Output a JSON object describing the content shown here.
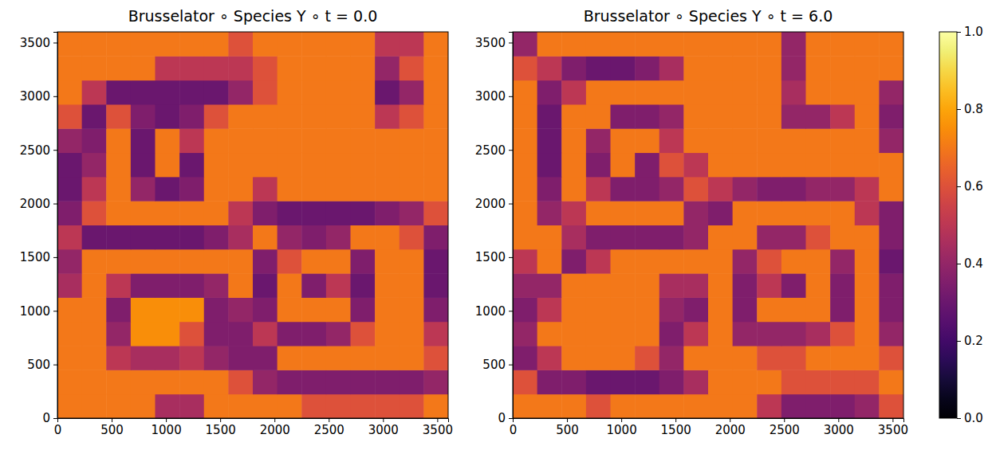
{
  "chart_data": [
    {
      "type": "heatmap",
      "title": "Brusselator ∘ Species Y ∘ t = 0.0",
      "xlim": [
        0,
        3600
      ],
      "ylim": [
        0,
        3600
      ],
      "xticks": [
        0,
        500,
        1000,
        1500,
        2000,
        2500,
        3000,
        3500
      ],
      "yticks": [
        0,
        500,
        1000,
        1500,
        2000,
        2500,
        3000,
        3500
      ],
      "x": [
        112.5,
        337.5,
        562.5,
        787.5,
        1012.5,
        1237.5,
        1462.5,
        1687.5,
        1912.5,
        2137.5,
        2362.5,
        2587.5,
        2812.5,
        3037.5,
        3262.5,
        3487.5
      ],
      "y": [
        112.5,
        337.5,
        562.5,
        787.5,
        1012.5,
        1237.5,
        1462.5,
        1687.5,
        1912.5,
        2137.5,
        2362.5,
        2587.5,
        2812.5,
        3037.5,
        3262.5,
        3487.5
      ],
      "z": [
        [
          0.7,
          0.7,
          0.7,
          0.7,
          0.45,
          0.45,
          0.7,
          0.7,
          0.7,
          0.7,
          0.6,
          0.6,
          0.6,
          0.6,
          0.6,
          0.7
        ],
        [
          0.7,
          0.7,
          0.7,
          0.7,
          0.7,
          0.7,
          0.7,
          0.6,
          0.4,
          0.35,
          0.35,
          0.35,
          0.35,
          0.35,
          0.35,
          0.4
        ],
        [
          0.7,
          0.7,
          0.5,
          0.45,
          0.45,
          0.5,
          0.4,
          0.35,
          0.35,
          0.7,
          0.7,
          0.7,
          0.7,
          0.7,
          0.7,
          0.6
        ],
        [
          0.7,
          0.7,
          0.4,
          0.75,
          0.75,
          0.6,
          0.35,
          0.35,
          0.5,
          0.35,
          0.35,
          0.4,
          0.6,
          0.7,
          0.7,
          0.5
        ],
        [
          0.7,
          0.7,
          0.35,
          0.75,
          0.75,
          0.75,
          0.35,
          0.4,
          0.35,
          0.7,
          0.7,
          0.7,
          0.35,
          0.7,
          0.7,
          0.35
        ],
        [
          0.45,
          0.7,
          0.5,
          0.35,
          0.35,
          0.35,
          0.4,
          0.7,
          0.3,
          0.7,
          0.35,
          0.5,
          0.3,
          0.7,
          0.7,
          0.3
        ],
        [
          0.4,
          0.7,
          0.7,
          0.7,
          0.7,
          0.7,
          0.7,
          0.7,
          0.35,
          0.6,
          0.7,
          0.7,
          0.35,
          0.7,
          0.7,
          0.3
        ],
        [
          0.5,
          0.3,
          0.3,
          0.3,
          0.3,
          0.3,
          0.35,
          0.45,
          0.7,
          0.4,
          0.35,
          0.4,
          0.7,
          0.7,
          0.6,
          0.35
        ],
        [
          0.35,
          0.6,
          0.7,
          0.7,
          0.7,
          0.7,
          0.7,
          0.5,
          0.35,
          0.3,
          0.3,
          0.3,
          0.3,
          0.35,
          0.4,
          0.6
        ],
        [
          0.3,
          0.5,
          0.7,
          0.4,
          0.3,
          0.35,
          0.7,
          0.7,
          0.5,
          0.7,
          0.7,
          0.7,
          0.7,
          0.7,
          0.7,
          0.7
        ],
        [
          0.3,
          0.4,
          0.7,
          0.3,
          0.7,
          0.3,
          0.7,
          0.7,
          0.7,
          0.7,
          0.7,
          0.7,
          0.7,
          0.7,
          0.7,
          0.7
        ],
        [
          0.4,
          0.35,
          0.7,
          0.3,
          0.7,
          0.5,
          0.7,
          0.7,
          0.7,
          0.7,
          0.7,
          0.7,
          0.7,
          0.7,
          0.7,
          0.7
        ],
        [
          0.6,
          0.3,
          0.6,
          0.35,
          0.3,
          0.35,
          0.6,
          0.7,
          0.7,
          0.7,
          0.7,
          0.7,
          0.7,
          0.5,
          0.6,
          0.7
        ],
        [
          0.7,
          0.5,
          0.3,
          0.3,
          0.3,
          0.3,
          0.3,
          0.4,
          0.6,
          0.7,
          0.7,
          0.7,
          0.7,
          0.3,
          0.4,
          0.7
        ],
        [
          0.7,
          0.7,
          0.7,
          0.7,
          0.5,
          0.5,
          0.5,
          0.5,
          0.6,
          0.7,
          0.7,
          0.7,
          0.7,
          0.4,
          0.6,
          0.7
        ],
        [
          0.7,
          0.7,
          0.7,
          0.7,
          0.7,
          0.7,
          0.7,
          0.6,
          0.7,
          0.7,
          0.7,
          0.7,
          0.7,
          0.5,
          0.5,
          0.7
        ]
      ]
    },
    {
      "type": "heatmap",
      "title": "Brusselator ∘ Species Y ∘ t = 6.0",
      "xlim": [
        0,
        3600
      ],
      "ylim": [
        0,
        3600
      ],
      "xticks": [
        0,
        500,
        1000,
        1500,
        2000,
        2500,
        3000,
        3500
      ],
      "yticks": [
        0,
        500,
        1000,
        1500,
        2000,
        2500,
        3000,
        3500
      ],
      "x": [
        112.5,
        337.5,
        562.5,
        787.5,
        1012.5,
        1237.5,
        1462.5,
        1687.5,
        1912.5,
        2137.5,
        2362.5,
        2587.5,
        2812.5,
        3037.5,
        3262.5,
        3487.5
      ],
      "y": [
        112.5,
        337.5,
        562.5,
        787.5,
        1012.5,
        1237.5,
        1462.5,
        1687.5,
        1912.5,
        2137.5,
        2362.5,
        2587.5,
        2812.5,
        3037.5,
        3262.5,
        3487.5
      ],
      "z": [
        [
          0.7,
          0.7,
          0.7,
          0.6,
          0.7,
          0.7,
          0.7,
          0.7,
          0.7,
          0.7,
          0.5,
          0.35,
          0.35,
          0.35,
          0.4,
          0.6
        ],
        [
          0.6,
          0.35,
          0.35,
          0.3,
          0.3,
          0.3,
          0.35,
          0.45,
          0.7,
          0.7,
          0.7,
          0.6,
          0.6,
          0.6,
          0.6,
          0.7
        ],
        [
          0.35,
          0.5,
          0.7,
          0.7,
          0.7,
          0.6,
          0.4,
          0.7,
          0.7,
          0.7,
          0.6,
          0.6,
          0.7,
          0.7,
          0.7,
          0.6
        ],
        [
          0.4,
          0.7,
          0.7,
          0.7,
          0.7,
          0.7,
          0.35,
          0.5,
          0.7,
          0.4,
          0.4,
          0.4,
          0.45,
          0.6,
          0.7,
          0.4
        ],
        [
          0.35,
          0.5,
          0.7,
          0.7,
          0.7,
          0.7,
          0.4,
          0.35,
          0.7,
          0.35,
          0.7,
          0.7,
          0.7,
          0.35,
          0.7,
          0.35
        ],
        [
          0.4,
          0.4,
          0.7,
          0.7,
          0.7,
          0.7,
          0.45,
          0.45,
          0.7,
          0.35,
          0.5,
          0.35,
          0.7,
          0.35,
          0.7,
          0.35
        ],
        [
          0.5,
          0.7,
          0.35,
          0.5,
          0.7,
          0.7,
          0.7,
          0.7,
          0.7,
          0.4,
          0.6,
          0.7,
          0.7,
          0.4,
          0.7,
          0.3
        ],
        [
          0.7,
          0.7,
          0.45,
          0.35,
          0.35,
          0.35,
          0.35,
          0.4,
          0.7,
          0.7,
          0.4,
          0.4,
          0.6,
          0.7,
          0.7,
          0.35
        ],
        [
          0.7,
          0.4,
          0.5,
          0.7,
          0.7,
          0.7,
          0.7,
          0.4,
          0.35,
          0.7,
          0.7,
          0.7,
          0.7,
          0.7,
          0.5,
          0.35
        ],
        [
          0.7,
          0.35,
          0.7,
          0.5,
          0.35,
          0.35,
          0.4,
          0.6,
          0.5,
          0.4,
          0.35,
          0.35,
          0.4,
          0.4,
          0.5,
          0.7
        ],
        [
          0.7,
          0.3,
          0.7,
          0.35,
          0.7,
          0.35,
          0.6,
          0.5,
          0.7,
          0.7,
          0.7,
          0.7,
          0.7,
          0.7,
          0.7,
          0.7
        ],
        [
          0.7,
          0.3,
          0.7,
          0.4,
          0.7,
          0.7,
          0.5,
          0.7,
          0.7,
          0.7,
          0.7,
          0.7,
          0.7,
          0.7,
          0.7,
          0.4
        ],
        [
          0.7,
          0.3,
          0.7,
          0.7,
          0.35,
          0.35,
          0.4,
          0.7,
          0.7,
          0.7,
          0.7,
          0.4,
          0.4,
          0.5,
          0.7,
          0.35
        ],
        [
          0.7,
          0.35,
          0.5,
          0.7,
          0.7,
          0.7,
          0.7,
          0.7,
          0.7,
          0.7,
          0.7,
          0.45,
          0.7,
          0.7,
          0.7,
          0.4
        ],
        [
          0.6,
          0.5,
          0.35,
          0.3,
          0.3,
          0.35,
          0.45,
          0.7,
          0.7,
          0.7,
          0.7,
          0.4,
          0.7,
          0.7,
          0.7,
          0.7
        ],
        [
          0.4,
          0.7,
          0.7,
          0.7,
          0.7,
          0.7,
          0.7,
          0.7,
          0.7,
          0.7,
          0.7,
          0.4,
          0.7,
          0.7,
          0.7,
          0.7
        ]
      ],
      "colorbar": {
        "lim": [
          0,
          1
        ],
        "ticks": [
          {
            "value": 0,
            "label": "0.0"
          },
          0.2,
          0.4,
          0.6,
          0.8,
          {
            "value": 1,
            "label": "1.0"
          }
        ]
      }
    }
  ]
}
